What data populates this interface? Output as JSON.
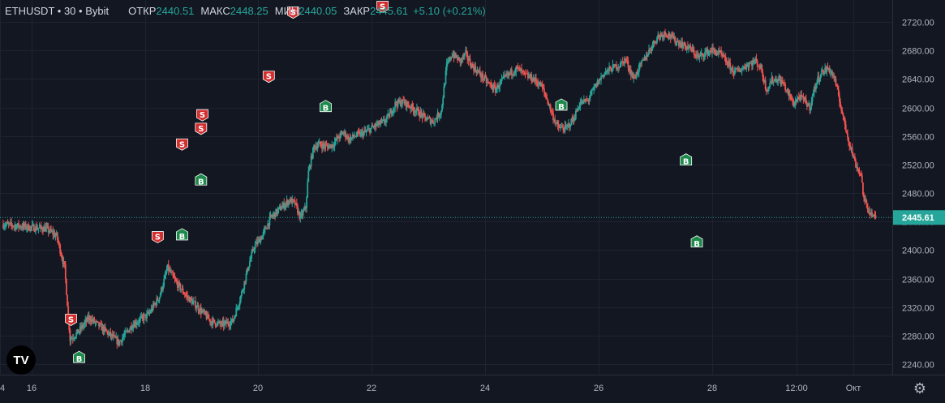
{
  "header": {
    "symbol": "ETHUSDT",
    "interval": "30",
    "exchange": "Bybit",
    "open_label": "ОТКР",
    "open_value": "2440.51",
    "high_label": "МАКС",
    "high_value": "2448.25",
    "low_label": "МИН",
    "low_value": "2440.05",
    "close_label": "ЗАКР",
    "close_value": "2445.61",
    "change": "+5.10 (+0.21%)"
  },
  "logo_text": "TV",
  "settings_icon": "gear-icon",
  "colors": {
    "background": "#131722",
    "up": "#26a69a",
    "down": "#ef5350",
    "grid": "#1f2330",
    "price_line": "#26a69a",
    "sell_marker": "#d32f2f",
    "buy_marker": "#1b8a4a"
  },
  "chart_data": {
    "type": "candlestick",
    "y_range": [
      2220,
      2730
    ],
    "y_ticks": [
      2240,
      2280,
      2320,
      2360,
      2400,
      2440,
      2480,
      2520,
      2560,
      2600,
      2640,
      2680,
      2720
    ],
    "x_ticks": [
      {
        "label": "4",
        "x": 0
      },
      {
        "label": "16",
        "x": 24
      },
      {
        "label": "18",
        "x": 120
      },
      {
        "label": "20",
        "x": 216
      },
      {
        "label": "22",
        "x": 312
      },
      {
        "label": "24",
        "x": 408
      },
      {
        "label": "26",
        "x": 504
      },
      {
        "label": "28",
        "x": 600
      },
      {
        "label": "12:00",
        "x": 672
      },
      {
        "label": "Окт",
        "x": 720
      }
    ],
    "x_range": [
      0,
      750
    ],
    "last_price": 2445.61,
    "last_price_label": "2445.61",
    "price_anchors": [
      [
        0,
        2436
      ],
      [
        10,
        2432
      ],
      [
        16,
        2430
      ],
      [
        20,
        2420
      ],
      [
        23,
        2375
      ],
      [
        25,
        2275
      ],
      [
        28,
        2285
      ],
      [
        32,
        2305
      ],
      [
        37,
        2290
      ],
      [
        43,
        2270
      ],
      [
        48,
        2295
      ],
      [
        54,
        2310
      ],
      [
        58,
        2335
      ],
      [
        61,
        2375
      ],
      [
        64,
        2355
      ],
      [
        68,
        2335
      ],
      [
        72,
        2320
      ],
      [
        77,
        2300
      ],
      [
        81,
        2295
      ],
      [
        85,
        2300
      ],
      [
        88,
        2335
      ],
      [
        91,
        2380
      ],
      [
        93,
        2405
      ],
      [
        96,
        2420
      ],
      [
        99,
        2445
      ],
      [
        103,
        2460
      ],
      [
        106,
        2470
      ],
      [
        108,
        2465
      ],
      [
        110,
        2445
      ],
      [
        112,
        2460
      ],
      [
        113,
        2510
      ],
      [
        115,
        2545
      ],
      [
        117,
        2548
      ],
      [
        120,
        2545
      ],
      [
        122,
        2548
      ],
      [
        124,
        2558
      ],
      [
        126,
        2565
      ],
      [
        128,
        2555
      ],
      [
        130,
        2560
      ],
      [
        134,
        2565
      ],
      [
        138,
        2575
      ],
      [
        141,
        2580
      ],
      [
        143,
        2590
      ],
      [
        145,
        2605
      ],
      [
        148,
        2608
      ],
      [
        151,
        2600
      ],
      [
        153,
        2595
      ],
      [
        156,
        2585
      ],
      [
        159,
        2580
      ],
      [
        162,
        2595
      ],
      [
        164,
        2658
      ],
      [
        166,
        2675
      ],
      [
        169,
        2665
      ],
      [
        171,
        2675
      ],
      [
        173,
        2660
      ],
      [
        176,
        2648
      ],
      [
        179,
        2635
      ],
      [
        182,
        2625
      ],
      [
        185,
        2640
      ],
      [
        188,
        2650
      ],
      [
        190,
        2655
      ],
      [
        193,
        2645
      ],
      [
        196,
        2640
      ],
      [
        199,
        2630
      ],
      [
        201,
        2612
      ],
      [
        203,
        2590
      ],
      [
        205,
        2572
      ],
      [
        208,
        2570
      ],
      [
        211,
        2585
      ],
      [
        213,
        2605
      ],
      [
        216,
        2610
      ],
      [
        219,
        2630
      ],
      [
        222,
        2648
      ],
      [
        225,
        2655
      ],
      [
        228,
        2660
      ],
      [
        230,
        2668
      ],
      [
        233,
        2640
      ],
      [
        235,
        2655
      ],
      [
        237,
        2668
      ],
      [
        240,
        2688
      ],
      [
        242,
        2700
      ],
      [
        245,
        2705
      ],
      [
        248,
        2695
      ],
      [
        251,
        2688
      ],
      [
        254,
        2682
      ],
      [
        257,
        2670
      ],
      [
        259,
        2676
      ],
      [
        262,
        2680
      ],
      [
        265,
        2675
      ],
      [
        268,
        2660
      ],
      [
        270,
        2650
      ],
      [
        272,
        2652
      ],
      [
        275,
        2660
      ],
      [
        278,
        2665
      ],
      [
        280,
        2655
      ],
      [
        282,
        2625
      ],
      [
        284,
        2638
      ],
      [
        286,
        2640
      ],
      [
        288,
        2635
      ],
      [
        290,
        2620
      ],
      [
        292,
        2605
      ],
      [
        294,
        2615
      ],
      [
        296,
        2610
      ],
      [
        298,
        2600
      ],
      [
        300,
        2630
      ],
      [
        302,
        2648
      ],
      [
        305,
        2655
      ],
      [
        307,
        2642
      ],
      [
        309,
        2610
      ],
      [
        311,
        2575
      ],
      [
        313,
        2545
      ],
      [
        315,
        2520
      ],
      [
        317,
        2505
      ],
      [
        318,
        2470
      ],
      [
        320,
        2455
      ],
      [
        322,
        2445
      ]
    ],
    "sell_signals": [
      {
        "x": 25,
        "price": 2294
      },
      {
        "x": 57,
        "price": 2410
      },
      {
        "x": 66,
        "price": 2540
      },
      {
        "x": 73,
        "price": 2562
      },
      {
        "x": 73.5,
        "price": 2581
      },
      {
        "x": 98,
        "price": 2635
      },
      {
        "x": 107,
        "price": 2725
      },
      {
        "x": 140,
        "price": 2733
      }
    ],
    "buy_signals": [
      {
        "x": 28,
        "price": 2258
      },
      {
        "x": 66,
        "price": 2430
      },
      {
        "x": 73,
        "price": 2507
      },
      {
        "x": 119,
        "price": 2610
      },
      {
        "x": 206,
        "price": 2612
      },
      {
        "x": 252,
        "price": 2535
      },
      {
        "x": 256,
        "price": 2420
      }
    ]
  }
}
